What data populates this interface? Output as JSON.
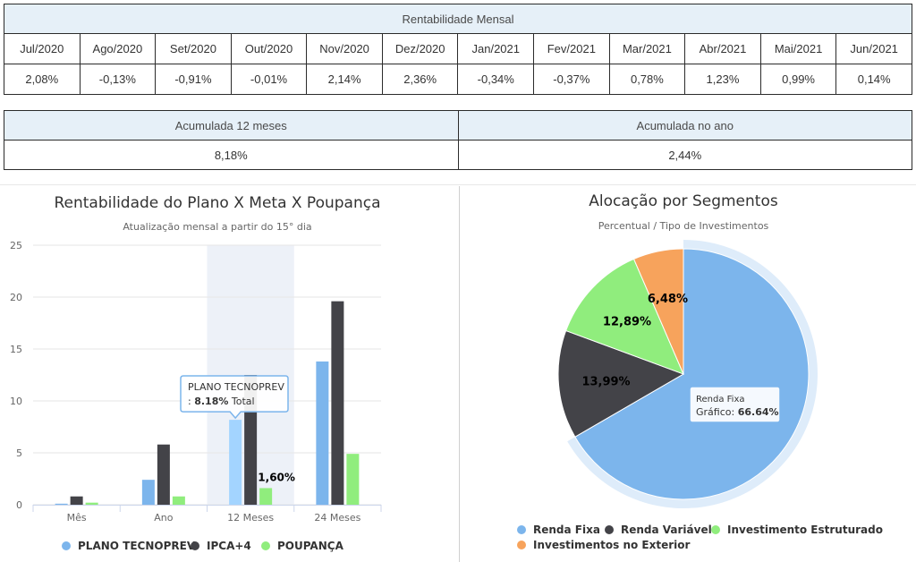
{
  "monthly": {
    "title": "Rentabilidade Mensal",
    "months": [
      "Jul/2020",
      "Ago/2020",
      "Set/2020",
      "Out/2020",
      "Nov/2020",
      "Dez/2020",
      "Jan/2021",
      "Fev/2021",
      "Mar/2021",
      "Abr/2021",
      "Mai/2021",
      "Jun/2021"
    ],
    "values": [
      "2,08%",
      "-0,13%",
      "-0,91%",
      "-0,01%",
      "2,14%",
      "2,36%",
      "-0,34%",
      "-0,37%",
      "0,78%",
      "1,23%",
      "0,99%",
      "0,14%"
    ]
  },
  "accumulated": {
    "label_12m": "Acumulada 12 meses",
    "label_year": "Acumulada no ano",
    "value_12m": "8,18%",
    "value_year": "2,44%"
  },
  "chart_data": [
    {
      "type": "bar",
      "title": "Rentabilidade do Plano X Meta X Poupança",
      "subtitle": "Atualização mensal a partir do 15° dia",
      "categories": [
        "Mês",
        "Ano",
        "12 Meses",
        "24 Meses"
      ],
      "series": [
        {
          "name": "PLANO TECNOPREV",
          "color": "#7cb5ec",
          "values": [
            0.1,
            2.4,
            8.18,
            13.8
          ]
        },
        {
          "name": "IPCA+4",
          "color": "#434348",
          "values": [
            0.8,
            5.8,
            12.5,
            19.6
          ]
        },
        {
          "name": "POUPANÇA",
          "color": "#90ed7d",
          "values": [
            0.2,
            0.8,
            1.6,
            4.9
          ]
        }
      ],
      "ylim": [
        0,
        25
      ],
      "yticks": [
        0,
        5,
        10,
        15,
        20,
        25
      ],
      "data_labels": [
        {
          "series": 2,
          "category": 2,
          "text": "1,60%"
        }
      ],
      "highlighted_category": 2,
      "tooltip": {
        "series": 0,
        "category": 2,
        "title": "PLANO TECNOPREV",
        "prefix": ": ",
        "value": "8.18%",
        "suffix": " Total"
      },
      "legend_position": "bottom",
      "grid": true
    },
    {
      "type": "pie",
      "title": "Alocação por Segmentos",
      "subtitle": "Percentual / Tipo de Investimentos",
      "slices": [
        {
          "name": "Renda Fixa",
          "value": 66.64,
          "label": "",
          "color": "#7cb5ec"
        },
        {
          "name": "Renda Variável",
          "value": 13.99,
          "label": "13,99%",
          "color": "#434348"
        },
        {
          "name": "Investimento Estruturado",
          "value": 12.89,
          "label": "12,89%",
          "color": "#90ed7d"
        },
        {
          "name": "Investimentos no Exterior",
          "value": 6.48,
          "label": "6,48%",
          "color": "#f7a35c"
        }
      ],
      "tooltip": {
        "title": "Renda Fixa",
        "prefix": "Gráfico: ",
        "value": "66.64%"
      },
      "highlighted_slice": 0,
      "legend_position": "bottom"
    }
  ]
}
